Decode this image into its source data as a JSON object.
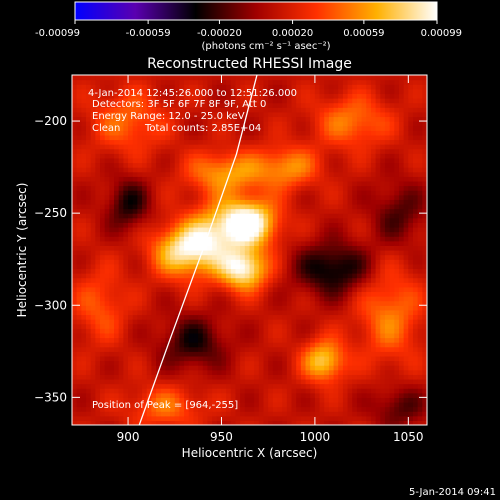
{
  "chart_data": {
    "type": "heatmap",
    "title": "Reconstructed RHESSI Image",
    "xlabel": "Heliocentric X (arcsec)",
    "ylabel": "Heliocentric Y (arcsec)",
    "xlim": [
      870,
      1060
    ],
    "ylim": [
      -365,
      -175
    ],
    "x_ticks": [
      900,
      950,
      1000,
      1050
    ],
    "y_ticks": [
      -350,
      -300,
      -250,
      -200
    ],
    "x_tick_labels": [
      "900",
      "950",
      "1000",
      "1050"
    ],
    "y_tick_labels": [
      "−350",
      "−300",
      "−250",
      "−200"
    ],
    "colorbar": {
      "min": -0.00099,
      "max": 0.00099,
      "ticks": [
        -0.00099,
        -0.00059,
        -0.0002,
        0.0002,
        0.00059,
        0.00099
      ],
      "tick_labels": [
        "-0.00099",
        "-0.00059",
        "-0.00020",
        "0.00020",
        "0.00059",
        "0.00099"
      ],
      "unit_label": "(photons cm⁻² s⁻¹ asec⁻²)",
      "colors": [
        "#0000ff",
        "#5a00b0",
        "#000000",
        "#a00000",
        "#ff3000",
        "#ffb000",
        "#ffffff"
      ]
    },
    "info": {
      "time_range": "4-Jan-2014 12:45:26.000 to 12:51:26.000",
      "detectors": "Detectors: 3F 5F 6F 7F 8F 9F, Att 0",
      "energy": "Energy Range: 12.0 - 25.0 keV",
      "clean": "Clean",
      "counts": "Total counts: 2.85E+04",
      "peak": "Position of Peak = [964,-255]"
    },
    "sources": [
      {
        "x": 964,
        "y": -255,
        "value": 0.00099,
        "sx": 11,
        "sy": 9
      },
      {
        "x": 962,
        "y": -280,
        "value": 0.00085,
        "sx": 9,
        "sy": 8
      },
      {
        "x": 930,
        "y": -270,
        "value": 0.00075,
        "sx": 12,
        "sy": 10
      },
      {
        "x": 945,
        "y": -262,
        "value": 0.00045,
        "sx": 10,
        "sy": 12
      },
      {
        "x": 952,
        "y": -228,
        "value": 0.0005,
        "sx": 14,
        "sy": 8
      },
      {
        "x": 985,
        "y": -225,
        "value": 0.00045,
        "sx": 12,
        "sy": 8
      },
      {
        "x": 1005,
        "y": -330,
        "value": 0.00065,
        "sx": 8,
        "sy": 8
      },
      {
        "x": 1040,
        "y": -305,
        "value": 0.0004,
        "sx": 12,
        "sy": 18
      },
      {
        "x": 1020,
        "y": -200,
        "value": 0.0004,
        "sx": 14,
        "sy": 10
      },
      {
        "x": 900,
        "y": -200,
        "value": 0.00035,
        "sx": 14,
        "sy": 12
      },
      {
        "x": 885,
        "y": -300,
        "value": 0.0003,
        "sx": 10,
        "sy": 14
      },
      {
        "x": 920,
        "y": -355,
        "value": 0.00035,
        "sx": 14,
        "sy": 8
      },
      {
        "x": 1010,
        "y": -280,
        "value": -0.0005,
        "sx": 14,
        "sy": 10
      },
      {
        "x": 900,
        "y": -245,
        "value": -0.0004,
        "sx": 8,
        "sy": 10
      },
      {
        "x": 935,
        "y": -320,
        "value": -0.0004,
        "sx": 12,
        "sy": 10
      },
      {
        "x": 1045,
        "y": -355,
        "value": -0.0003,
        "sx": 10,
        "sy": 8
      },
      {
        "x": 1045,
        "y": -250,
        "value": -0.0003,
        "sx": 10,
        "sy": 12
      }
    ],
    "limb_line": [
      [
        906,
        -365
      ],
      [
        923,
        -317
      ],
      [
        940,
        -270
      ],
      [
        958,
        -218
      ],
      [
        969,
        -175
      ]
    ]
  },
  "footer": {
    "date": "5-Jan-2014 09:41"
  }
}
